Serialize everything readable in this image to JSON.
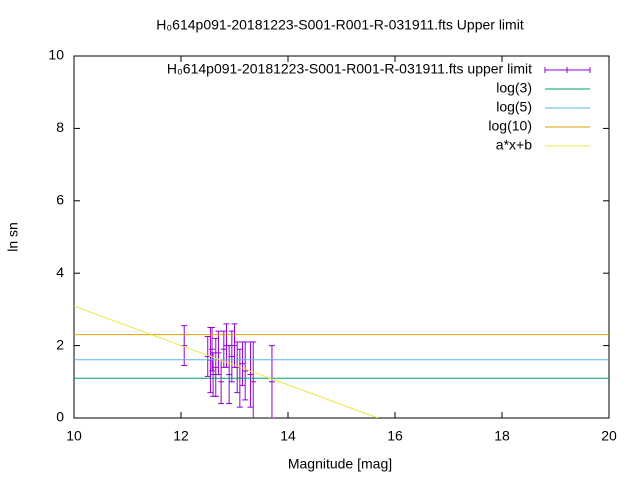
{
  "chart_data": {
    "type": "line",
    "title": "H₀614p091-20181223-S001-R001-R-031911.fts Upper limit",
    "xlabel": "Magnitude [mag]",
    "ylabel": "ln sn",
    "xlim": [
      10,
      20
    ],
    "xticks": [
      10,
      12,
      14,
      16,
      18,
      20
    ],
    "ylim": [
      0,
      10
    ],
    "yticks": [
      0,
      2,
      4,
      6,
      8,
      10
    ],
    "legend": "top-right",
    "series": [
      {
        "name": "H₀614p091-20181223-S001-R001-R-031911.fts upper limit",
        "color": "#9400d3",
        "x": [
          12.06,
          12.5,
          12.55,
          12.58,
          12.6,
          12.65,
          12.7,
          12.75,
          12.8,
          12.85,
          12.9,
          12.95,
          13.0,
          13.05,
          13.1,
          13.15,
          13.2,
          13.3,
          13.35,
          13.7
        ],
        "values": [
          2.0,
          1.7,
          1.6,
          1.9,
          1.2,
          1.4,
          1.8,
          1.0,
          1.9,
          2.0,
          1.2,
          1.7,
          2.0,
          1.4,
          1.1,
          1.5,
          1.3,
          1.2,
          1.0,
          1.0
        ],
        "errors": [
          0.55,
          0.55,
          0.9,
          0.6,
          0.6,
          0.8,
          0.6,
          0.6,
          0.5,
          0.6,
          0.8,
          0.7,
          0.6,
          0.7,
          0.8,
          0.6,
          0.8,
          0.9,
          1.1,
          1.0
        ]
      },
      {
        "name": "log(3)",
        "color": "#009e73",
        "x": [
          10,
          20
        ],
        "values": [
          1.0986,
          1.0986
        ]
      },
      {
        "name": "log(5)",
        "color": "#56b4e9",
        "x": [
          10,
          20
        ],
        "values": [
          1.6094,
          1.6094
        ]
      },
      {
        "name": "log(10)",
        "color": "#e69f00",
        "x": [
          10,
          20
        ],
        "values": [
          2.3026,
          2.3026
        ]
      },
      {
        "name": "a*x+b",
        "color": "#f0e442",
        "x": [
          10,
          15.68
        ],
        "values": [
          3.09,
          0
        ]
      }
    ]
  }
}
